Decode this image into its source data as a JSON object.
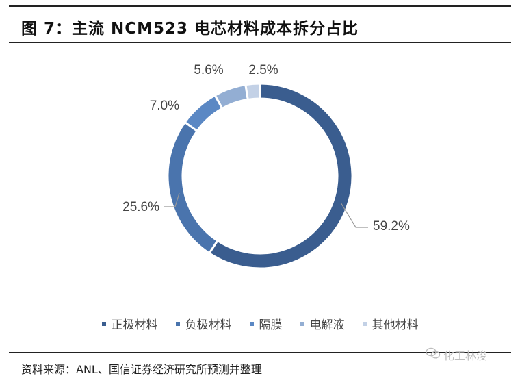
{
  "title": "图 7：主流 NCM523 电芯材料成本拆分占比",
  "source": "资料来源：ANL、国信证券经济研究所预测并整理",
  "watermark": "化工林浚",
  "chart_data": {
    "type": "pie",
    "style": "donut",
    "categories": [
      "正极材料",
      "负极材料",
      "隔膜",
      "电解液",
      "其他材料"
    ],
    "values": [
      59.2,
      25.6,
      7.0,
      5.6,
      2.5
    ],
    "labels": [
      "59.2%",
      "25.6%",
      "7.0%",
      "5.6%",
      "2.5%"
    ],
    "colors": [
      "#3a5d8f",
      "#4a74ad",
      "#5b88c4",
      "#93aed3",
      "#c3d1e6"
    ],
    "legend_position": "bottom"
  }
}
